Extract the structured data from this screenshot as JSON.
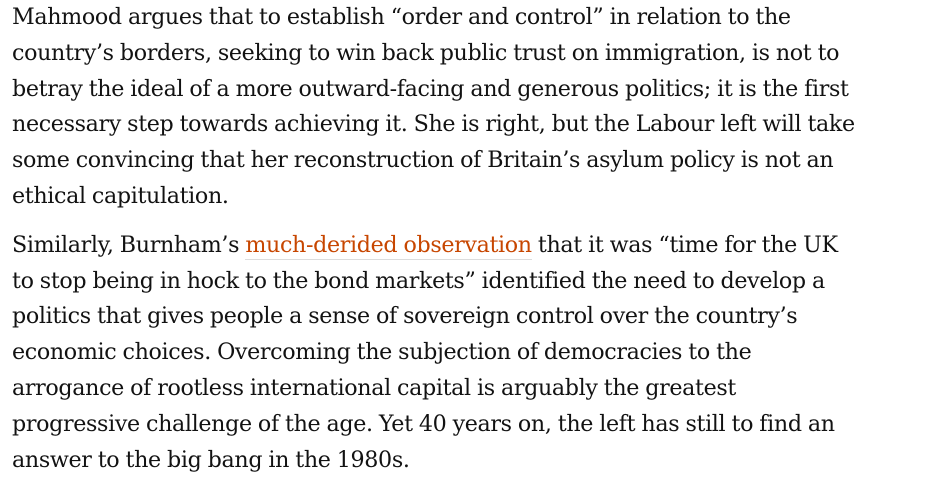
{
  "article": {
    "paragraph_1": {
      "lines": [
        "Mahmood argues that to establish “order and control” in relation to the",
        "country’s borders, seeking to win back public trust on immigration, is not to",
        "betray the ideal of a more outward-facing and generous politics; it is the first",
        "necessary step towards achieving it. She is right, but the Labour left will take",
        "some convincing that her reconstruction of Britain’s asylum policy is not an",
        "ethical capitulation."
      ]
    },
    "paragraph_2": {
      "line_1_before_link": "Similarly, Burnham’s ",
      "link_text": "much-derided observation",
      "line_1_after_link": " that it was “time for the UK",
      "lines": [
        "to stop being in hock to the bond markets” identified the need to develop a",
        "politics that gives people a sense of sovereign control over the country’s",
        "economic choices. Overcoming the subjection of democracies to the",
        "arrogance of rootless international capital is arguably the greatest",
        "progressive challenge of the age. Yet 40 years on, the left has still to find an",
        "answer to the big bang in the 1980s."
      ]
    },
    "colors": {
      "body_text": "#121212",
      "link": "#c74600",
      "link_underline": "#dcdcdc",
      "background": "#ffffff"
    }
  }
}
